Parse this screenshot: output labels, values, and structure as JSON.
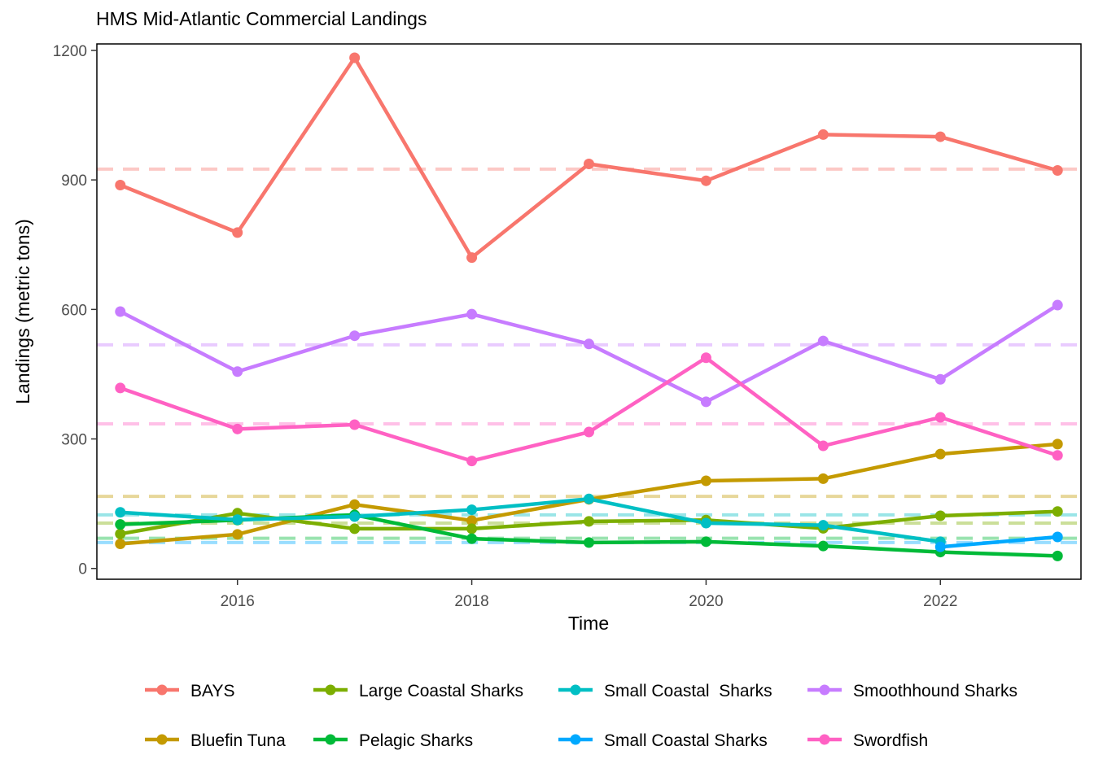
{
  "chart_data": {
    "type": "line",
    "title": "HMS Mid-Atlantic Commercial Landings",
    "xlabel": "Time",
    "ylabel": "Landings (metric tons)",
    "xlim": [
      2014.8,
      2023.2
    ],
    "ylim": [
      -25,
      1215
    ],
    "x_ticks": [
      2016,
      2018,
      2020,
      2022
    ],
    "y_ticks": [
      0,
      300,
      600,
      900,
      1200
    ],
    "x_tick_labels": [
      "2016",
      "2018",
      "2020",
      "2022"
    ],
    "y_tick_labels": [
      "0",
      "300",
      "600",
      "900",
      "1200"
    ],
    "legend_position": "bottom",
    "reference_lines": "dashed horizontal line per series at its mean value",
    "series": [
      {
        "name": "BAYS",
        "color": "#F8766D",
        "mean": 925,
        "x": [
          2015,
          2016,
          2017,
          2018,
          2019,
          2020,
          2021,
          2022,
          2023
        ],
        "values": [
          888,
          778,
          1183,
          720,
          937,
          898,
          1005,
          1000,
          922
        ]
      },
      {
        "name": "Bluefin Tuna",
        "color": "#C49A00",
        "mean": 167,
        "x": [
          2015,
          2016,
          2017,
          2018,
          2019,
          2020,
          2021,
          2022,
          2023
        ],
        "values": [
          57,
          79,
          148,
          111,
          160,
          203,
          208,
          265,
          288
        ]
      },
      {
        "name": "Large Coastal Sharks",
        "color": "#7CAE00",
        "mean": 105,
        "x": [
          2015,
          2016,
          2017,
          2018,
          2019,
          2020,
          2021,
          2022,
          2023
        ],
        "values": [
          80,
          128,
          92,
          92,
          109,
          112,
          93,
          122,
          132
        ]
      },
      {
        "name": "Pelagic Sharks",
        "color": "#00BA38",
        "mean": 70,
        "x": [
          2015,
          2016,
          2017,
          2018,
          2019,
          2020,
          2021,
          2022,
          2023
        ],
        "values": [
          102,
          112,
          124,
          69,
          60,
          62,
          52,
          38,
          29
        ]
      },
      {
        "name": "Small Coastal  Sharks",
        "color": "#00BFC4",
        "mean": 124,
        "x": [
          2015,
          2016,
          2017,
          2018,
          2019,
          2020,
          2021,
          2022
        ],
        "values": [
          130,
          113,
          120,
          136,
          161,
          105,
          100,
          62
        ]
      },
      {
        "name": "Small Coastal Sharks",
        "color": "#00A9FF",
        "mean": 60,
        "x": [
          2022,
          2023
        ],
        "values": [
          50,
          73
        ]
      },
      {
        "name": "Smoothhound Sharks",
        "color": "#C77CFF",
        "mean": 518,
        "x": [
          2015,
          2016,
          2017,
          2018,
          2019,
          2020,
          2021,
          2022,
          2023
        ],
        "values": [
          595,
          456,
          539,
          589,
          520,
          386,
          527,
          438,
          610
        ]
      },
      {
        "name": "Swordfish",
        "color": "#FF61C3",
        "mean": 335,
        "x": [
          2015,
          2016,
          2017,
          2018,
          2019,
          2020,
          2021,
          2022,
          2023
        ],
        "values": [
          418,
          323,
          333,
          249,
          316,
          488,
          284,
          350,
          262
        ]
      }
    ],
    "legend": [
      {
        "label": "BAYS",
        "series": 0
      },
      {
        "label": "Large Coastal Sharks",
        "series": 2
      },
      {
        "label": "Small Coastal  Sharks",
        "series": 4
      },
      {
        "label": "Smoothhound Sharks",
        "series": 6
      },
      {
        "label": "Bluefin Tuna",
        "series": 1
      },
      {
        "label": "Pelagic Sharks",
        "series": 3
      },
      {
        "label": "Small Coastal Sharks",
        "series": 5
      },
      {
        "label": "Swordfish",
        "series": 7
      }
    ]
  }
}
